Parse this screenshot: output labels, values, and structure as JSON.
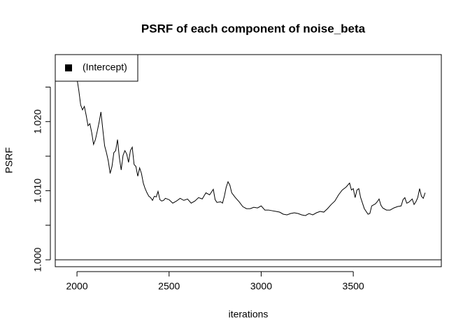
{
  "chart_data": {
    "type": "line",
    "title": "PSRF of each component of noise_beta",
    "x_label": "iterations",
    "y_label": "PSRF",
    "xlim": [
      1882,
      3978
    ],
    "ylim": [
      0.999,
      1.0297
    ],
    "xticks": [
      2000,
      2500,
      3000,
      3500
    ],
    "yticks": [
      {
        "value": 1.0,
        "label": "1.000"
      },
      {
        "value": 1.005,
        "label": null
      },
      {
        "value": 1.01,
        "label": "1.010"
      },
      {
        "value": 1.015,
        "label": null
      },
      {
        "value": 1.02,
        "label": "1.020"
      },
      {
        "value": 1.025,
        "label": null
      }
    ],
    "hline": 1,
    "legend": "topleft",
    "x": [
      2000,
      2010,
      2020,
      2030,
      2040,
      2050,
      2060,
      2070,
      2080,
      2090,
      2100,
      2110,
      2120,
      2130,
      2140,
      2150,
      2160,
      2170,
      2180,
      2190,
      2200,
      2210,
      2220,
      2230,
      2240,
      2250,
      2260,
      2270,
      2280,
      2290,
      2300,
      2310,
      2320,
      2330,
      2340,
      2350,
      2360,
      2370,
      2380,
      2390,
      2400,
      2410,
      2420,
      2430,
      2440,
      2450,
      2460,
      2470,
      2480,
      2500,
      2520,
      2540,
      2560,
      2580,
      2600,
      2620,
      2640,
      2660,
      2680,
      2700,
      2720,
      2740,
      2750,
      2760,
      2780,
      2790,
      2800,
      2810,
      2820,
      2830,
      2840,
      2860,
      2880,
      2900,
      2920,
      2940,
      2960,
      2980,
      3000,
      3020,
      3040,
      3060,
      3080,
      3100,
      3120,
      3140,
      3160,
      3180,
      3200,
      3220,
      3240,
      3260,
      3280,
      3300,
      3320,
      3340,
      3360,
      3380,
      3400,
      3420,
      3440,
      3460,
      3480,
      3490,
      3500,
      3510,
      3520,
      3530,
      3540,
      3560,
      3580,
      3590,
      3600,
      3620,
      3630,
      3640,
      3650,
      3660,
      3680,
      3700,
      3720,
      3740,
      3760,
      3770,
      3780,
      3790,
      3800,
      3820,
      3830,
      3840,
      3850,
      3860,
      3870,
      3880,
      3890
    ],
    "series": [
      {
        "name": "(Intercept)",
        "color": "#000000",
        "values": [
          1.0262,
          1.0245,
          1.0224,
          1.0217,
          1.0222,
          1.0209,
          1.0194,
          1.0197,
          1.0184,
          1.0167,
          1.0174,
          1.0186,
          1.0199,
          1.0214,
          1.0189,
          1.0165,
          1.0155,
          1.0143,
          1.0125,
          1.0135,
          1.0155,
          1.0158,
          1.0174,
          1.0148,
          1.013,
          1.0151,
          1.0158,
          1.0153,
          1.0141,
          1.0158,
          1.0163,
          1.0138,
          1.0135,
          1.0121,
          1.0133,
          1.0125,
          1.0111,
          1.0103,
          1.0097,
          1.0092,
          1.009,
          1.0086,
          1.0092,
          1.0091,
          1.0099,
          1.0087,
          1.0085,
          1.0086,
          1.0089,
          1.0087,
          1.0082,
          1.0085,
          1.0089,
          1.0086,
          1.0088,
          1.0082,
          1.0085,
          1.009,
          1.0088,
          1.0097,
          1.0094,
          1.0102,
          1.0087,
          1.0083,
          1.0084,
          1.0082,
          1.0092,
          1.0105,
          1.0113,
          1.0108,
          1.0097,
          1.009,
          1.0084,
          1.0077,
          1.0074,
          1.0074,
          1.0076,
          1.0075,
          1.0078,
          1.0072,
          1.0072,
          1.0071,
          1.007,
          1.0069,
          1.0066,
          1.0065,
          1.0067,
          1.0068,
          1.0067,
          1.0065,
          1.0064,
          1.0067,
          1.0065,
          1.0068,
          1.007,
          1.0069,
          1.0074,
          1.008,
          1.0085,
          1.0094,
          1.0101,
          1.0105,
          1.0111,
          1.0101,
          1.0103,
          1.009,
          1.0101,
          1.0103,
          1.009,
          1.0074,
          1.0066,
          1.0067,
          1.0078,
          1.0081,
          1.0084,
          1.0088,
          1.0079,
          1.0075,
          1.0072,
          1.0072,
          1.0075,
          1.0077,
          1.0078,
          1.0087,
          1.009,
          1.0082,
          1.0083,
          1.0088,
          1.008,
          1.0084,
          1.009,
          1.0103,
          1.0092,
          1.0089,
          1.0097
        ]
      }
    ]
  }
}
